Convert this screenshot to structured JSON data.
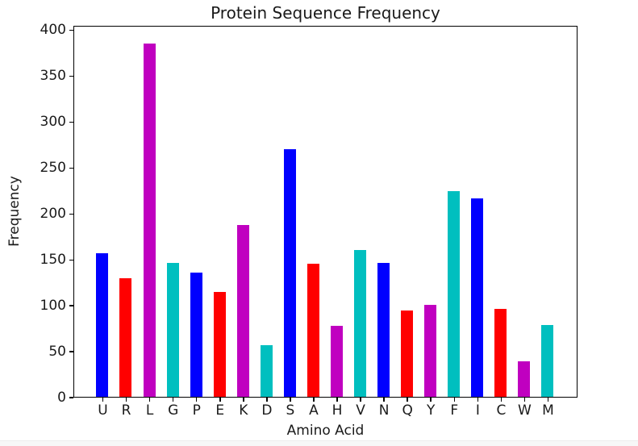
{
  "chart_data": {
    "type": "bar",
    "title": "Protein Sequence Frequency",
    "xlabel": "Amino Acid",
    "ylabel": "Frequency",
    "categories": [
      "U",
      "R",
      "L",
      "G",
      "P",
      "E",
      "K",
      "D",
      "S",
      "A",
      "H",
      "V",
      "N",
      "Q",
      "Y",
      "F",
      "I",
      "C",
      "W",
      "M"
    ],
    "values": [
      156,
      129,
      385,
      146,
      135,
      114,
      187,
      56,
      270,
      145,
      77,
      160,
      146,
      94,
      100,
      224,
      216,
      96,
      39,
      78
    ],
    "bar_color_cycle": [
      "#0000ff",
      "#ff0000",
      "#c000c0",
      "#00bfbf"
    ],
    "ylim": [
      0,
      405
    ],
    "yticks": [
      0,
      50,
      100,
      150,
      200,
      250,
      300,
      350,
      400
    ],
    "grid": false,
    "legend": null,
    "frame": true
  }
}
